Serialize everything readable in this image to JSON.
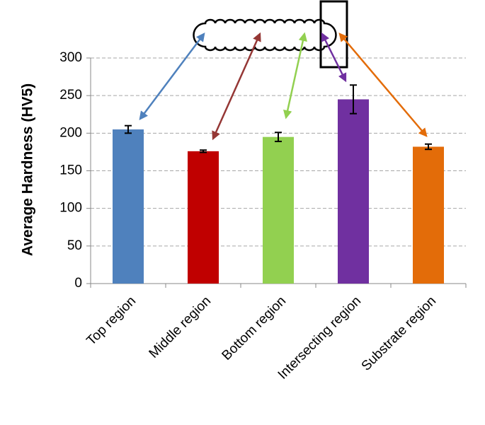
{
  "chart_data": {
    "type": "bar",
    "ylabel": "Average Hardness (HV5)",
    "categories": [
      "Top region",
      "Middle region",
      "Bottom region",
      "Intersecting region",
      "Substrate region"
    ],
    "values": [
      205,
      176,
      195,
      245,
      182
    ],
    "errors": [
      5,
      1.5,
      6,
      19,
      3.5
    ],
    "colors": [
      "#4f81bd",
      "#c00000",
      "#92d050",
      "#7030a0",
      "#e36c09"
    ],
    "ylim": [
      0,
      300
    ],
    "yticks": [
      0,
      50,
      100,
      150,
      200,
      250,
      300
    ],
    "grid": true
  }
}
